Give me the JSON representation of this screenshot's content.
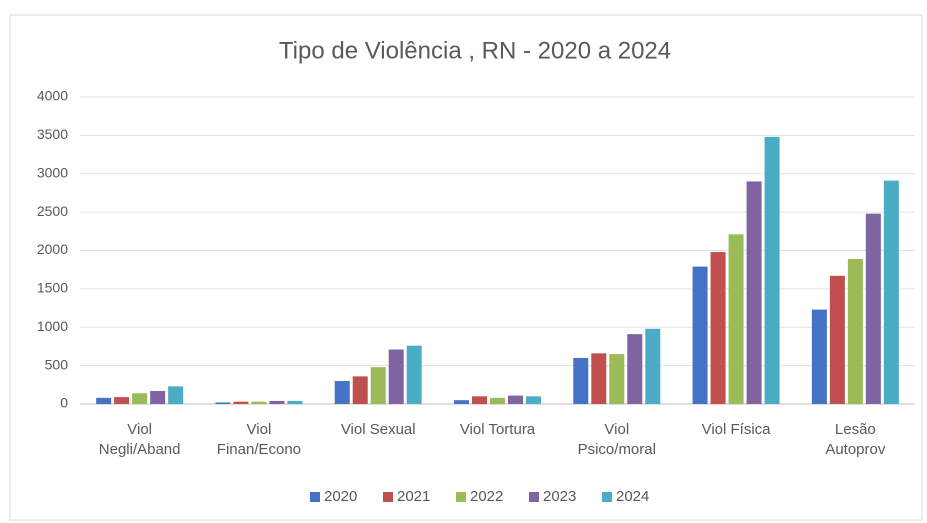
{
  "chart_data": {
    "type": "bar",
    "title": "Tipo de Violência , RN - 2020 a 2024",
    "categories": [
      "Viol\nNegli/Aband",
      "Viol\nFinan/Econo",
      "Viol Sexual",
      "Viol Tortura",
      "Viol\nPsico/moral",
      "Viol Física",
      "Lesão\nAutoprov"
    ],
    "series": [
      {
        "name": "2020",
        "color": "#4472c4",
        "values": [
          80,
          20,
          300,
          50,
          600,
          1790,
          1230
        ]
      },
      {
        "name": "2021",
        "color": "#c0504d",
        "values": [
          90,
          30,
          360,
          100,
          660,
          1980,
          1670
        ]
      },
      {
        "name": "2022",
        "color": "#9bbb59",
        "values": [
          140,
          30,
          480,
          80,
          650,
          2210,
          1890
        ]
      },
      {
        "name": "2023",
        "color": "#8064a2",
        "values": [
          170,
          40,
          710,
          110,
          910,
          2900,
          2480
        ]
      },
      {
        "name": "2024",
        "color": "#4bacc6",
        "values": [
          230,
          40,
          760,
          100,
          980,
          3480,
          2910
        ]
      }
    ],
    "ylim": [
      0,
      4000
    ],
    "yticks": [
      0,
      500,
      1000,
      1500,
      2000,
      2500,
      3000,
      3500,
      4000
    ],
    "grid": true,
    "legend": "bottom"
  }
}
